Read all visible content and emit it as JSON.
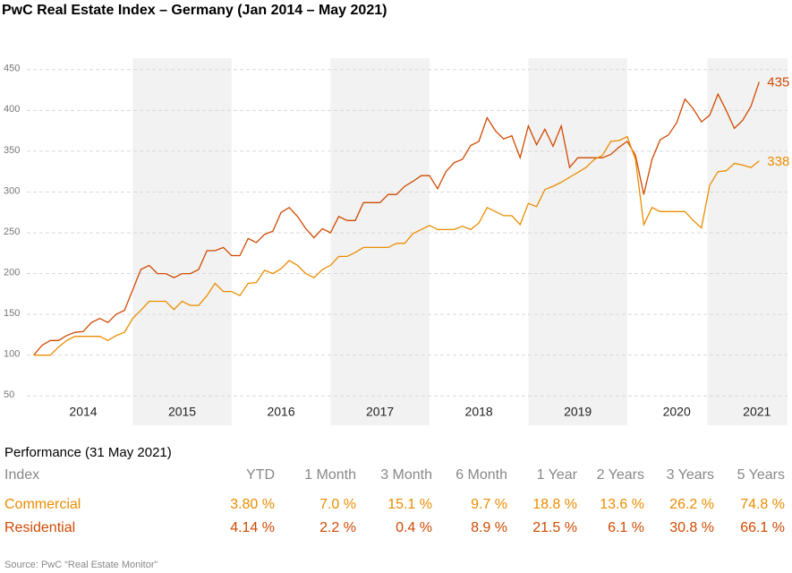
{
  "chart_data": {
    "type": "line",
    "title": "PwC Real Estate Index – Germany (Jan 2014 – May 2021)",
    "x": [
      2014,
      2014.083,
      2014.167,
      2014.25,
      2014.333,
      2014.417,
      2014.5,
      2014.583,
      2014.667,
      2014.75,
      2014.833,
      2014.917,
      2015,
      2015.083,
      2015.167,
      2015.25,
      2015.333,
      2015.417,
      2015.5,
      2015.583,
      2015.667,
      2015.75,
      2015.833,
      2015.917,
      2016,
      2016.083,
      2016.167,
      2016.25,
      2016.333,
      2016.417,
      2016.5,
      2016.583,
      2016.667,
      2016.75,
      2016.833,
      2016.917,
      2017,
      2017.083,
      2017.167,
      2017.25,
      2017.333,
      2017.417,
      2017.5,
      2017.583,
      2017.667,
      2017.75,
      2017.833,
      2017.917,
      2018,
      2018.083,
      2018.167,
      2018.25,
      2018.333,
      2018.417,
      2018.5,
      2018.583,
      2018.667,
      2018.75,
      2018.833,
      2018.917,
      2019,
      2019.083,
      2019.167,
      2019.25,
      2019.333,
      2019.417,
      2019.5,
      2019.583,
      2019.667,
      2019.75,
      2019.833,
      2019.917,
      2020,
      2020.083,
      2020.167,
      2020.25,
      2020.333,
      2020.417,
      2020.5,
      2020.583,
      2020.667,
      2020.75,
      2020.833,
      2020.917,
      2021,
      2021.083,
      2021.167,
      2021.25,
      2021.333
    ],
    "series": [
      {
        "name": "Residential",
        "color": "#d04a02",
        "values": [
          100,
          112,
          118,
          118,
          124,
          128,
          129,
          140,
          145,
          140,
          150,
          155,
          180,
          205,
          210,
          200,
          200,
          195,
          200,
          200,
          205,
          228,
          228,
          232,
          222,
          222,
          243,
          238,
          248,
          252,
          275,
          281,
          270,
          255,
          244,
          255,
          250,
          270,
          265,
          265,
          287,
          287,
          287,
          297,
          297,
          307,
          313,
          320,
          320,
          304,
          325,
          336,
          340,
          357,
          362,
          391,
          375,
          365,
          369,
          342,
          381,
          358,
          377,
          356,
          381,
          330,
          342,
          342,
          342,
          342,
          346,
          355,
          362,
          345,
          297,
          340,
          364,
          370,
          385,
          414,
          402,
          386,
          394,
          420,
          400,
          378,
          388,
          405,
          435
        ]
      },
      {
        "name": "Commercial",
        "color": "#eb8c00",
        "values": [
          100,
          100,
          100,
          110,
          118,
          123,
          123,
          123,
          123,
          118,
          124,
          128,
          145,
          155,
          166,
          166,
          166,
          156,
          166,
          161,
          161,
          173,
          188,
          178,
          178,
          173,
          188,
          189,
          204,
          200,
          206,
          216,
          210,
          200,
          195,
          205,
          210,
          221,
          221,
          226,
          232,
          232,
          232,
          232,
          237,
          237,
          249,
          254,
          259,
          254,
          254,
          254,
          258,
          254,
          262,
          281,
          276,
          271,
          271,
          260,
          286,
          282,
          303,
          307,
          312,
          318,
          324,
          330,
          340,
          345,
          362,
          363,
          368,
          340,
          260,
          281,
          276,
          276,
          276,
          276,
          265,
          256,
          308,
          325,
          326,
          335,
          333,
          330,
          338
        ]
      }
    ],
    "xlim": [
      2013.93,
      2021.62
    ],
    "xticks": [
      {
        "value": 2014.5,
        "label": "2014"
      },
      {
        "value": 2015.5,
        "label": "2015"
      },
      {
        "value": 2016.5,
        "label": "2016"
      },
      {
        "value": 2017.5,
        "label": "2017"
      },
      {
        "value": 2018.5,
        "label": "2018"
      },
      {
        "value": 2019.5,
        "label": "2019"
      },
      {
        "value": 2020.5,
        "label": "2020"
      },
      {
        "value": 2021.31,
        "label": "2021"
      }
    ],
    "ylim": [
      36,
      464
    ],
    "yticks": [
      50,
      100,
      150,
      200,
      250,
      300,
      350,
      400,
      450
    ],
    "grid": true
  },
  "table": {
    "title": "Performance (31 May 2021)",
    "header": [
      "Index",
      "YTD",
      "1 Month",
      "3 Month",
      "6 Month",
      "1 Year",
      "2 Years",
      "3 Years",
      "5 Years"
    ],
    "rows": [
      [
        "Commercial",
        "3.80 %",
        "7.0 %",
        "15.1 %",
        "9.7 %",
        "18.8 %",
        "13.6 %",
        "26.2 %",
        "74.8 %"
      ],
      [
        "Residential",
        "4.14 %",
        "2.2 %",
        "0.4 %",
        "8.9 %",
        "21.5 %",
        "6.1 %",
        "30.8 %",
        "66.1 %"
      ]
    ]
  },
  "source": "Source: PwC “Real Estate Monitor”"
}
